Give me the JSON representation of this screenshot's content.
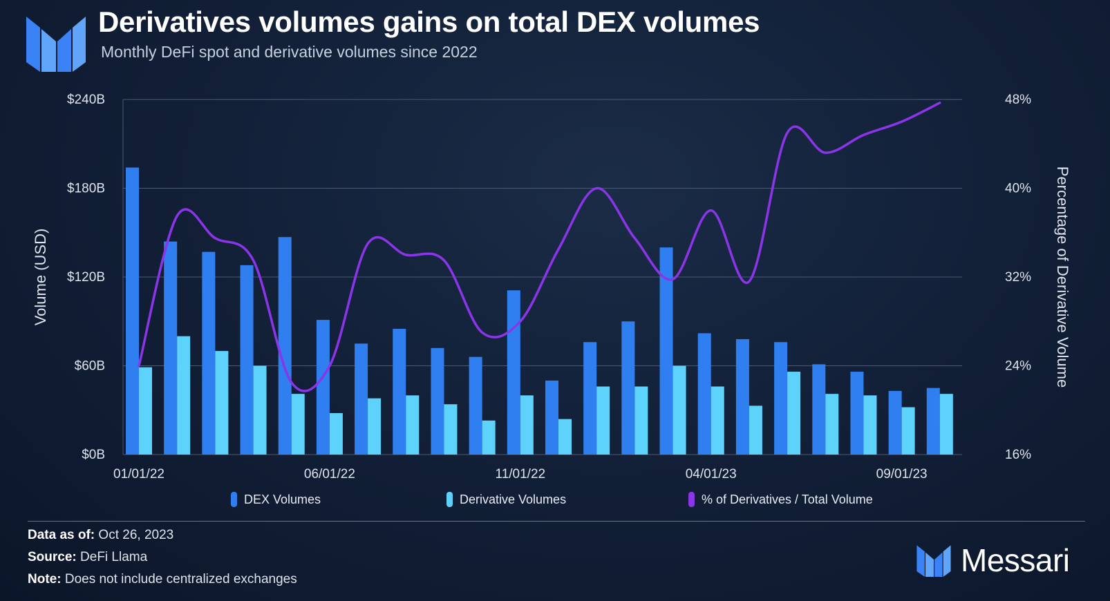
{
  "header": {
    "title": "Derivatives volumes gains on total DEX volumes",
    "subtitle": "Monthly DeFi spot and derivative volumes since 2022"
  },
  "colors": {
    "dex": "#2f7ff0",
    "derivative": "#5dd3fb",
    "pct": "#8b35e8",
    "grid": "#4a5a72",
    "axis_text": "#dfe5ee"
  },
  "chart_data": {
    "type": "bar",
    "title": "Derivatives volumes gains on total DEX volumes",
    "subtitle": "Monthly DeFi spot and derivative volumes since 2022",
    "categories": [
      "01/01/22",
      "02/01/22",
      "03/01/22",
      "04/01/22",
      "05/01/22",
      "06/01/22",
      "07/01/22",
      "08/01/22",
      "09/01/22",
      "10/01/22",
      "11/01/22",
      "12/01/22",
      "01/01/23",
      "02/01/23",
      "03/01/23",
      "04/01/23",
      "05/01/23",
      "06/01/23",
      "07/01/23",
      "08/01/23",
      "09/01/23",
      "10/01/23"
    ],
    "x_tick_labels": [
      "01/01/22",
      "06/01/22",
      "11/01/22",
      "04/01/23",
      "09/01/23"
    ],
    "x_tick_indices": [
      0,
      5,
      10,
      15,
      20
    ],
    "series": [
      {
        "name": "DEX Volumes",
        "axis": "left",
        "kind": "bar",
        "values": [
          194,
          144,
          137,
          128,
          147,
          91,
          75,
          85,
          72,
          66,
          111,
          50,
          76,
          90,
          140,
          82,
          78,
          76,
          61,
          56,
          43,
          45
        ]
      },
      {
        "name": "Derivative Volumes",
        "axis": "left",
        "kind": "bar",
        "values": [
          59,
          80,
          70,
          60,
          41,
          28,
          38,
          40,
          34,
          23,
          40,
          24,
          46,
          46,
          60,
          46,
          33,
          56,
          41,
          40,
          32,
          41
        ]
      },
      {
        "name": "% of Derivatives / Total Volume",
        "axis": "right",
        "kind": "line",
        "values": [
          24.0,
          37.5,
          35.5,
          33.5,
          22.5,
          24.0,
          35.0,
          34.0,
          33.5,
          27.0,
          28.0,
          34.5,
          40.0,
          35.5,
          31.8,
          38.0,
          31.6,
          45.0,
          43.2,
          44.8,
          46.0,
          47.7
        ]
      }
    ],
    "ylabel": "Volume (USD)",
    "ylim": [
      0,
      240
    ],
    "y_ticks": [
      "$0B",
      "$60B",
      "$120B",
      "$180B",
      "$240B"
    ],
    "y2label": "Percentage of Derivative Volume",
    "y2lim": [
      16,
      48
    ],
    "y2_ticks": [
      "16%",
      "24%",
      "32%",
      "40%",
      "48%"
    ],
    "legend": [
      "DEX Volumes",
      "Derivative Volumes",
      "% of Derivatives / Total Volume"
    ],
    "legend_position": "bottom"
  },
  "footer": {
    "data_as_of_label": "Data as of:",
    "data_as_of_value": "Oct 26, 2023",
    "source_label": "Source:",
    "source_value": "DeFi Llama",
    "note_label": "Note:",
    "note_value": "Does not include centralized exchanges",
    "brand": "Messari"
  }
}
